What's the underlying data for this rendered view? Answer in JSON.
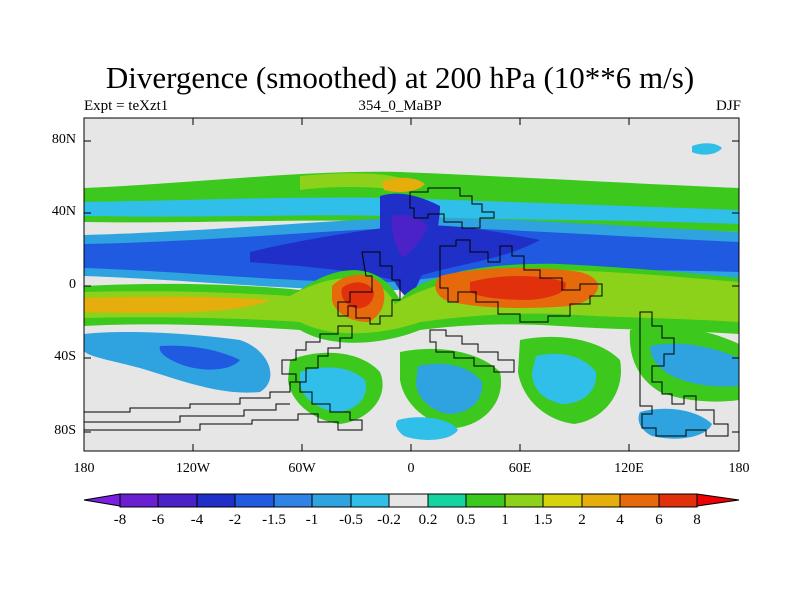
{
  "figure": {
    "title": "Divergence (smoothed) at 200 hPa (10**6 m/s)",
    "left_label": "Expt = teXzt1",
    "center_label": "354_0_MaBP",
    "right_label": "DJF"
  },
  "axes": {
    "y_ticks": [
      "80N",
      "40N",
      "0",
      "40S",
      "80S"
    ],
    "x_ticks": [
      "180",
      "120W",
      "60W",
      "0",
      "60E",
      "120E",
      "180"
    ],
    "lon_range": [
      -180,
      180
    ],
    "lat_range": [
      -90,
      90
    ]
  },
  "colorbar": {
    "labels": [
      "-8",
      "-6",
      "-4",
      "-2",
      "-1.5",
      "-1",
      "-0.5",
      "-0.2",
      "0.2",
      "0.5",
      "1",
      "1.5",
      "2",
      "4",
      "6",
      "8"
    ],
    "colors": [
      "#7b1fe0",
      "#6a1fd0",
      "#4a22c8",
      "#1f2fc8",
      "#1f5ae0",
      "#2f83e6",
      "#2ea3e0",
      "#30bfe8",
      "#e6e6e6",
      "#16d4a0",
      "#3cc81c",
      "#8cd21a",
      "#d6d20c",
      "#e6ae0c",
      "#e66a0c",
      "#e0300c",
      "#ee0000"
    ]
  },
  "colors": {
    "background": "#e6e6e6",
    "coast": "#000000"
  }
}
